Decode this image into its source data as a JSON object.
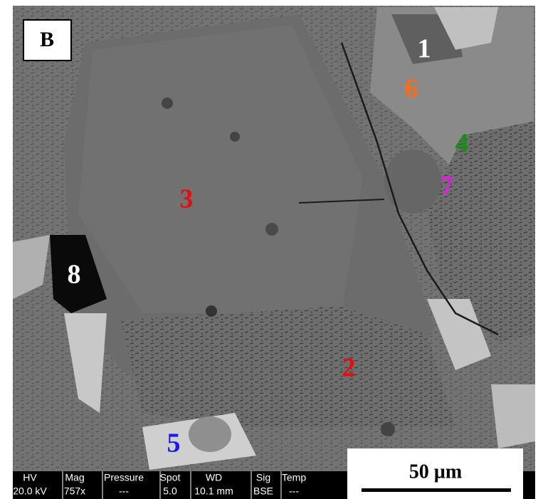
{
  "panel_label": "B",
  "points": [
    {
      "label": "1",
      "color": "#ffffff"
    },
    {
      "label": "6",
      "color": "#ff6a13"
    },
    {
      "label": "4",
      "color": "#1a8a1a"
    },
    {
      "label": "7",
      "color": "#e020e0"
    },
    {
      "label": "3",
      "color": "#e01010"
    },
    {
      "label": "8",
      "color": "#ffffff"
    },
    {
      "label": "2",
      "color": "#e01010"
    },
    {
      "label": "5",
      "color": "#1a1aee"
    }
  ],
  "info_bar": {
    "headers": [
      "HV",
      "Mag",
      "Pressure",
      "Spot",
      "WD",
      "Sig",
      "Temp"
    ],
    "values": [
      "20.0 kV",
      "757x",
      "---",
      "5.0",
      "10.1 mm",
      "BSE",
      "---"
    ]
  },
  "scale_bar": "50 µm"
}
